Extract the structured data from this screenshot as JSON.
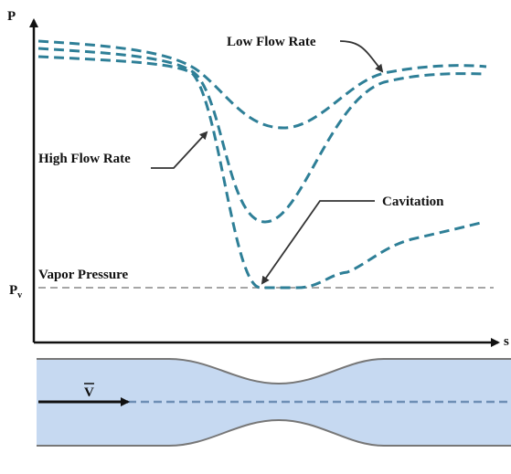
{
  "axes": {
    "y_label": "P",
    "x_label": "s"
  },
  "labels": {
    "low_flow": "Low Flow Rate",
    "high_flow": "High Flow Rate",
    "cavitation": "Cavitation",
    "vapor_pressure": "Vapor Pressure"
  },
  "vapor_symbol": {
    "main": "P",
    "sub": "v"
  },
  "velocity_symbol": "V"
}
